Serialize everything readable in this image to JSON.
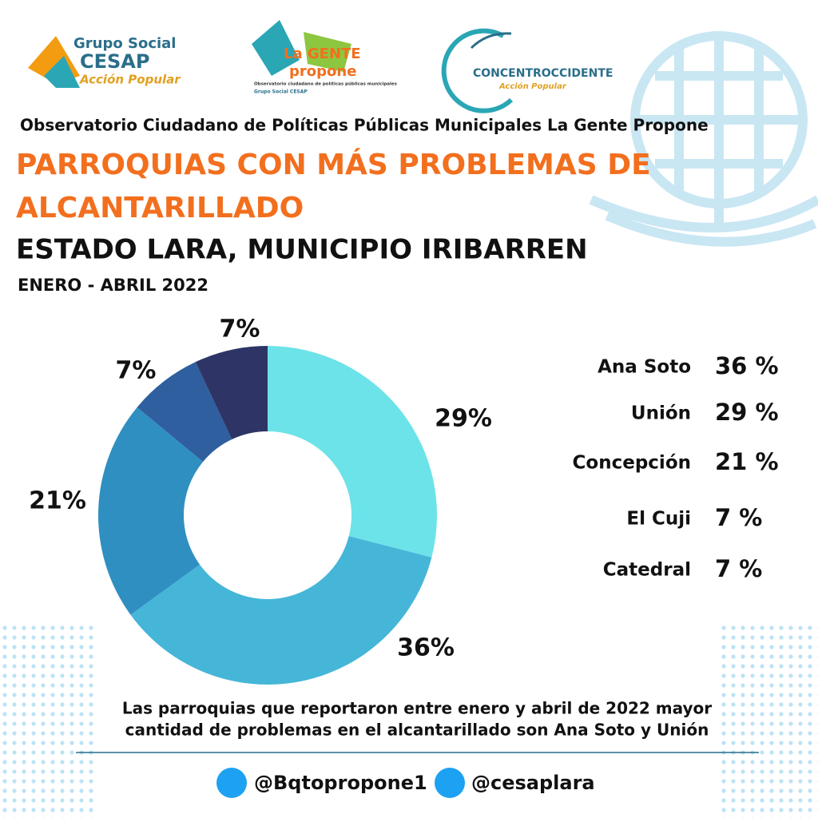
{
  "logos": {
    "cesap_top": "Grupo Social",
    "cesap_name": "CESAP",
    "cesap_sub": "Acción Popular",
    "gente_top": "La GENTE",
    "gente_name": "propone",
    "gente_sub": "Observatorio ciudadano de políticas públicas municipales",
    "gente_org": "Grupo Social CESAP",
    "concentro_name": "CONCENTROCCIDENTE",
    "concentro_sub": "Acción Popular"
  },
  "header": {
    "observatory": "Observatorio Ciudadano de Políticas Públicas Municipales La Gente Propone",
    "title_line1": "PARROQUIAS CON MÁS PROBLEMAS DE",
    "title_line2": "ALCANTARILLADO",
    "subtitle": "ESTADO LARA, MUNICIPIO IRIBARREN",
    "period": "ENERO - ABRIL 2022"
  },
  "chart_data": {
    "type": "pie",
    "donut": true,
    "categories": [
      "Unión",
      "Ana Soto",
      "Concepción",
      "El Cuji",
      "Catedral"
    ],
    "values": [
      29,
      36,
      21,
      7,
      7
    ],
    "value_labels": [
      "29%",
      "36%",
      "21%",
      "7%",
      "7%"
    ],
    "colors": [
      "#6ce3e8",
      "#45b6d8",
      "#2f8fc0",
      "#2f5f9e",
      "#2e3566"
    ]
  },
  "legend": {
    "rows": [
      {
        "name": "Ana Soto",
        "value": "36 %"
      },
      {
        "name": "Unión",
        "value": "29 %"
      },
      {
        "name": "Concepción",
        "value": "21  %"
      },
      {
        "name": "El Cuji",
        "value": "7 %"
      },
      {
        "name": "Catedral",
        "value": "7 %"
      }
    ]
  },
  "footer": {
    "note_line1": "Las parroquias que reportaron entre enero y abril de 2022 mayor",
    "note_line2": "cantidad de problemas en el alcantarillado son Ana Soto y Unión",
    "handle1": "@Bqtopropone1",
    "handle2": "@cesaplara"
  }
}
